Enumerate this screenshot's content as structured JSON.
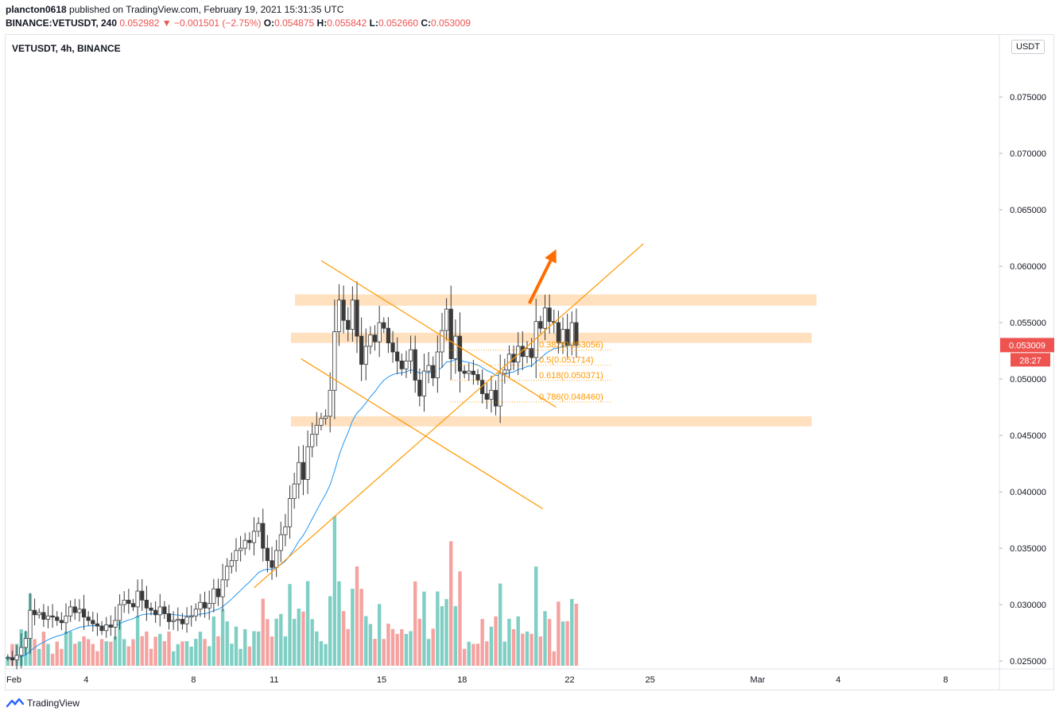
{
  "header": {
    "publisher": "plancton0618",
    "published_text": "published on TradingView.com, February 19, 2021 15:31:35 UTC",
    "ticker_line": "BINANCE:VETUSDT, 240",
    "last_price": "0.052982",
    "change_arrow": "▼",
    "change": "−0.001501 (−2.75%)",
    "open_label": "O:",
    "open": "0.054875",
    "high_label": "H:",
    "high": "0.055842",
    "low_label": "L:",
    "low": "0.052660",
    "close_label": "C:",
    "close": "0.053009"
  },
  "symbol_label": "VETUSDT, 4h, BINANCE",
  "currency_badge": "USDT",
  "price_tag": "0.053009",
  "countdown_tag": "28:27",
  "footer": {
    "brand": "TradingView"
  },
  "colors": {
    "up": "#26a69a",
    "down": "#ef5350",
    "ma": "#2196f3",
    "orange": "#ff9800",
    "zone": "#ffe0bf",
    "arrow": "#ff6d00",
    "vol_up": "#7fcfc4",
    "vol_down": "#f5a3a1"
  },
  "chart_data": {
    "type": "candlestick",
    "x_axis": {
      "labels": [
        "Feb",
        "4",
        "8",
        "11",
        "15",
        "18",
        "22",
        "25",
        "Mar",
        "4",
        "8"
      ],
      "range": [
        "2021-02-01",
        "2021-03-10"
      ]
    },
    "y_axis": {
      "ticks": [
        "0.075000",
        "0.070000",
        "0.065000",
        "0.060000",
        "0.055000",
        "0.050000",
        "0.045000",
        "0.040000",
        "0.035000",
        "0.030000",
        "0.025000"
      ],
      "range": [
        0.0243,
        0.0805
      ]
    },
    "closes": [
      0.0253,
      0.0251,
      0.0255,
      0.0262,
      0.027,
      0.0295,
      0.0291,
      0.0293,
      0.0287,
      0.029,
      0.0289,
      0.0286,
      0.0284,
      0.029,
      0.0298,
      0.0293,
      0.0296,
      0.0289,
      0.0286,
      0.0283,
      0.0281,
      0.0277,
      0.0282,
      0.028,
      0.0286,
      0.03,
      0.0304,
      0.0301,
      0.0298,
      0.0312,
      0.0304,
      0.0297,
      0.0295,
      0.0291,
      0.0298,
      0.0292,
      0.0285,
      0.0286,
      0.0287,
      0.0283,
      0.0289,
      0.029,
      0.0296,
      0.0302,
      0.0297,
      0.0301,
      0.0314,
      0.0307,
      0.0322,
      0.0334,
      0.0339,
      0.0348,
      0.035,
      0.0357,
      0.0355,
      0.0365,
      0.0372,
      0.035,
      0.0339,
      0.0333,
      0.0348,
      0.0362,
      0.0369,
      0.0394,
      0.0407,
      0.0426,
      0.0411,
      0.044,
      0.0451,
      0.0459,
      0.0465,
      0.0467,
      0.049,
      0.0542,
      0.057,
      0.0552,
      0.0544,
      0.057,
      0.0538,
      0.0513,
      0.0529,
      0.0539,
      0.0533,
      0.055,
      0.0545,
      0.0532,
      0.0524,
      0.0516,
      0.0509,
      0.0516,
      0.0526,
      0.0499,
      0.0485,
      0.0507,
      0.0512,
      0.0501,
      0.0524,
      0.0543,
      0.0562,
      0.0518,
      0.0538,
      0.0507,
      0.0505,
      0.0507,
      0.0504,
      0.0499,
      0.0487,
      0.0482,
      0.049,
      0.0476,
      0.0505,
      0.0508,
      0.0522,
      0.0515,
      0.0529,
      0.052,
      0.0527,
      0.0519,
      0.0551,
      0.0545,
      0.0563,
      0.0551,
      0.055,
      0.0532,
      0.0544,
      0.053,
      0.055,
      0.053
    ],
    "moving_average": {
      "type": "EMA",
      "color": "#2196f3"
    },
    "zones": [
      {
        "low": 0.0565,
        "high": 0.0575
      },
      {
        "low": 0.0532,
        "high": 0.0541
      },
      {
        "low": 0.0458,
        "high": 0.0467
      }
    ],
    "fib_levels": [
      {
        "label": "0.382(0.053056)",
        "value": 0.053056
      },
      {
        "label": "0.5(0.051714)",
        "value": 0.051714
      },
      {
        "label": "0.618(0.050371)",
        "value": 0.050371
      },
      {
        "label": "0.786(0.048460)",
        "value": 0.04846
      }
    ],
    "trendlines": [
      {
        "from": [
          "2021-02-10 06:00",
          0.0315
        ],
        "to": [
          "2021-02-24 18:00",
          0.062
        ]
      },
      {
        "from": [
          "2021-02-12 18:00",
          0.0605
        ],
        "to": [
          "2021-02-21 12:00",
          0.0475
        ]
      },
      {
        "from": [
          "2021-02-12 00:00",
          0.0518
        ],
        "to": [
          "2021-02-21 00:00",
          0.0385
        ]
      }
    ],
    "arrow": {
      "from": [
        "2021-02-20 12:00",
        0.0567
      ],
      "to": [
        "2021-02-21 12:00",
        0.0615
      ]
    }
  }
}
